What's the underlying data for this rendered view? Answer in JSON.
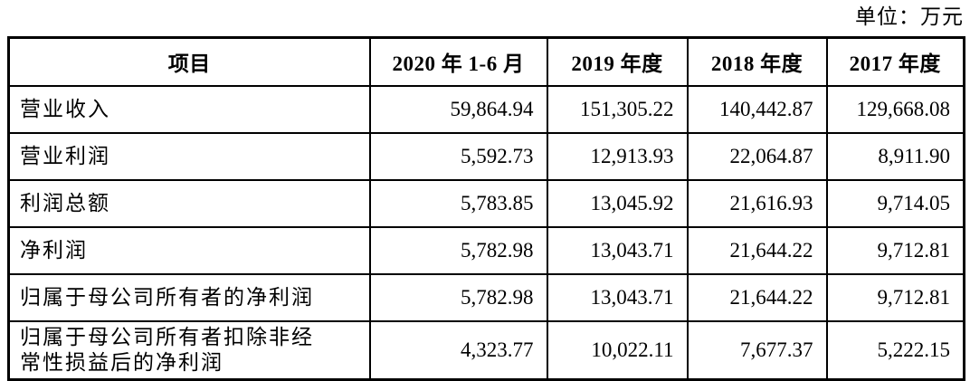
{
  "unit_label": "单位：万元",
  "table": {
    "headers": [
      "项目",
      "2020 年 1-6 月",
      "2019 年度",
      "2018 年度",
      "2017 年度"
    ],
    "rows": [
      {
        "label": "营业收入",
        "values": [
          "59,864.94",
          "151,305.22",
          "140,442.87",
          "129,668.08"
        ]
      },
      {
        "label": "营业利润",
        "values": [
          "5,592.73",
          "12,913.93",
          "22,064.87",
          "8,911.90"
        ]
      },
      {
        "label": "利润总额",
        "values": [
          "5,783.85",
          "13,045.92",
          "21,616.93",
          "9,714.05"
        ]
      },
      {
        "label": "净利润",
        "values": [
          "5,782.98",
          "13,043.71",
          "21,644.22",
          "9,712.81"
        ]
      },
      {
        "label": "归属于母公司所有者的净利润",
        "values": [
          "5,782.98",
          "13,043.71",
          "21,644.22",
          "9,712.81"
        ]
      },
      {
        "label": "归属于母公司所有者扣除非经常性损益后的净利润",
        "values": [
          "4,323.77",
          "10,022.11",
          "7,677.37",
          "5,222.15"
        ]
      }
    ]
  },
  "colors": {
    "text": "#000000",
    "border": "#000000",
    "background": "#ffffff"
  }
}
